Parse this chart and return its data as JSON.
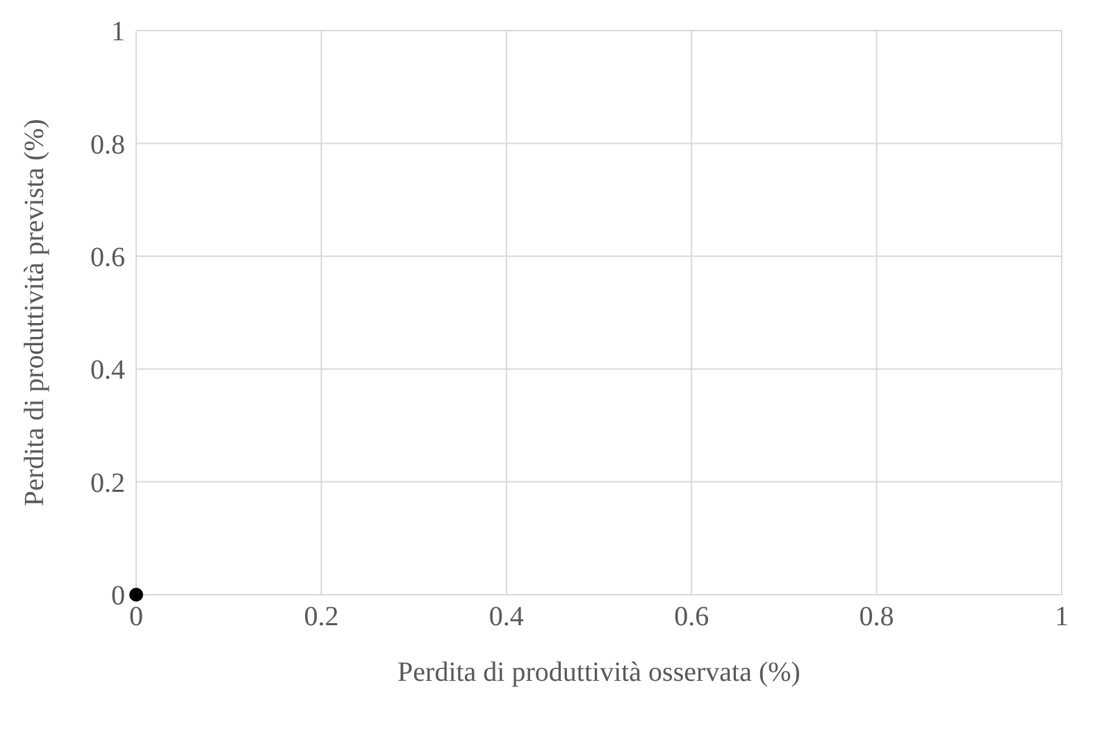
{
  "chart_data": {
    "type": "scatter",
    "xlabel": "Perdita di produttività osservata (%)",
    "ylabel": "Perdita di produttività prevista (%)",
    "x": [
      0
    ],
    "series": [
      {
        "color": "#000000",
        "values": [
          0
        ]
      }
    ],
    "xlim": [
      0,
      1
    ],
    "xticks": [
      0,
      0.2,
      0.4,
      0.6,
      0.8,
      1
    ],
    "ylim": [
      0,
      1
    ],
    "yticks": [
      0,
      0.2,
      0.4,
      0.6,
      0.8,
      1
    ],
    "grid": true,
    "marker": "circle"
  }
}
